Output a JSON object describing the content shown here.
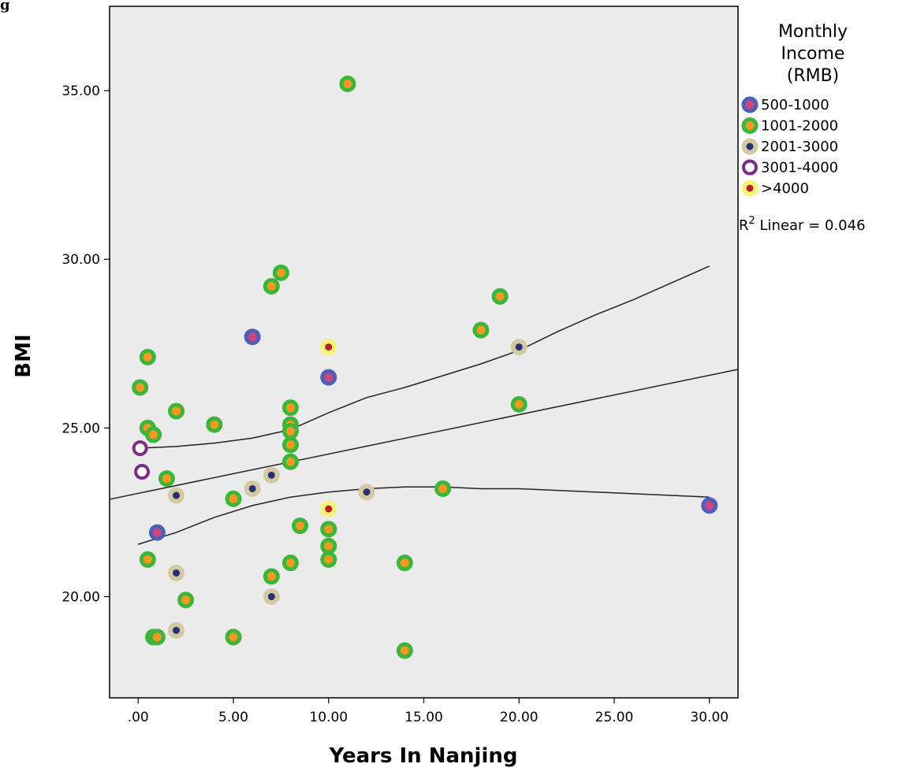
{
  "figure_label": "g",
  "chart_data": {
    "type": "scatter",
    "xlabel": "Years In Nanjing",
    "ylabel": "BMI",
    "xlim": [
      -1.5,
      31.5
    ],
    "ylim": [
      17.0,
      37.5
    ],
    "xticks": [
      0,
      5,
      10,
      15,
      20,
      25,
      30
    ],
    "xtick_labels": [
      ".00",
      "5.00",
      "10.00",
      "15.00",
      "20.00",
      "25.00",
      "30.00"
    ],
    "yticks": [
      20,
      25,
      30,
      35
    ],
    "ytick_labels": [
      "20.00",
      "25.00",
      "30.00",
      "35.00"
    ],
    "grid": false,
    "legend": {
      "title_lines": [
        "Monthly",
        "Income",
        "(RMB)"
      ],
      "placement": "right"
    },
    "r2_label": {
      "prefix": "R",
      "sup": "2",
      "text": " Linear = 0.046"
    },
    "series": [
      {
        "name": "500-1000",
        "ring": "#4f5fb8",
        "fill": "#c9467e",
        "style": "filled",
        "points": [
          [
            1.0,
            21.9
          ],
          [
            6.0,
            27.7
          ],
          [
            10.0,
            26.5
          ],
          [
            30.0,
            22.7
          ]
        ]
      },
      {
        "name": "1001-2000",
        "ring": "#3db53a",
        "fill": "#f39a23",
        "style": "filled",
        "points": [
          [
            0.1,
            26.2
          ],
          [
            0.5,
            27.1
          ],
          [
            0.5,
            25.0
          ],
          [
            0.8,
            24.8
          ],
          [
            0.5,
            21.1
          ],
          [
            0.8,
            18.8
          ],
          [
            1.0,
            18.8
          ],
          [
            1.5,
            23.5
          ],
          [
            2.0,
            25.5
          ],
          [
            2.5,
            19.9
          ],
          [
            4.0,
            25.1
          ],
          [
            5.0,
            22.9
          ],
          [
            5.0,
            18.8
          ],
          [
            7.0,
            29.2
          ],
          [
            7.5,
            29.6
          ],
          [
            7.0,
            20.6
          ],
          [
            8.0,
            25.6
          ],
          [
            8.0,
            25.1
          ],
          [
            8.0,
            24.9
          ],
          [
            8.0,
            24.5
          ],
          [
            8.0,
            24.0
          ],
          [
            8.0,
            21.0
          ],
          [
            8.5,
            22.1
          ],
          [
            10.0,
            22.0
          ],
          [
            10.0,
            21.5
          ],
          [
            10.0,
            21.1
          ],
          [
            11.0,
            35.2
          ],
          [
            14.0,
            21.0
          ],
          [
            14.0,
            18.4
          ],
          [
            16.0,
            23.2
          ],
          [
            18.0,
            27.9
          ],
          [
            19.0,
            28.9
          ],
          [
            20.0,
            25.7
          ]
        ]
      },
      {
        "name": "2001-3000",
        "ring": "#d3c9a2",
        "fill": "#283070",
        "style": "dot",
        "points": [
          [
            2.0,
            23.0
          ],
          [
            2.0,
            20.7
          ],
          [
            2.0,
            19.0
          ],
          [
            6.0,
            23.2
          ],
          [
            7.0,
            23.6
          ],
          [
            7.0,
            20.0
          ],
          [
            12.0,
            23.1
          ],
          [
            20.0,
            27.4
          ]
        ]
      },
      {
        "name": "3001-4000",
        "ring": "#7d2d82",
        "fill": "#ffffff",
        "style": "hollow",
        "points": [
          [
            0.1,
            24.4
          ],
          [
            0.2,
            23.7
          ]
        ]
      },
      {
        "name": ">4000",
        "ring": "#fbf27a",
        "fill": "#b52028",
        "style": "dot",
        "points": [
          [
            10.0,
            27.4
          ],
          [
            10.0,
            22.6
          ]
        ]
      }
    ],
    "fit_line": {
      "intercept": 23.06,
      "slope": 0.1167
    },
    "ci_upper": [
      [
        0,
        24.4
      ],
      [
        2,
        24.45
      ],
      [
        4,
        24.55
      ],
      [
        6,
        24.7
      ],
      [
        8,
        24.95
      ],
      [
        10,
        25.45
      ],
      [
        12,
        25.9
      ],
      [
        14,
        26.2
      ],
      [
        16,
        26.55
      ],
      [
        18,
        26.9
      ],
      [
        20,
        27.3
      ],
      [
        22,
        27.85
      ],
      [
        24,
        28.35
      ],
      [
        26,
        28.8
      ],
      [
        28,
        29.3
      ],
      [
        30,
        29.8
      ]
    ],
    "ci_lower": [
      [
        0,
        21.55
      ],
      [
        2,
        21.9
      ],
      [
        4,
        22.35
      ],
      [
        6,
        22.7
      ],
      [
        8,
        22.95
      ],
      [
        10,
        23.1
      ],
      [
        12,
        23.2
      ],
      [
        14,
        23.25
      ],
      [
        16,
        23.25
      ],
      [
        18,
        23.2
      ],
      [
        20,
        23.2
      ],
      [
        22,
        23.15
      ],
      [
        24,
        23.1
      ],
      [
        26,
        23.05
      ],
      [
        28,
        23.0
      ],
      [
        30,
        22.95
      ]
    ]
  }
}
